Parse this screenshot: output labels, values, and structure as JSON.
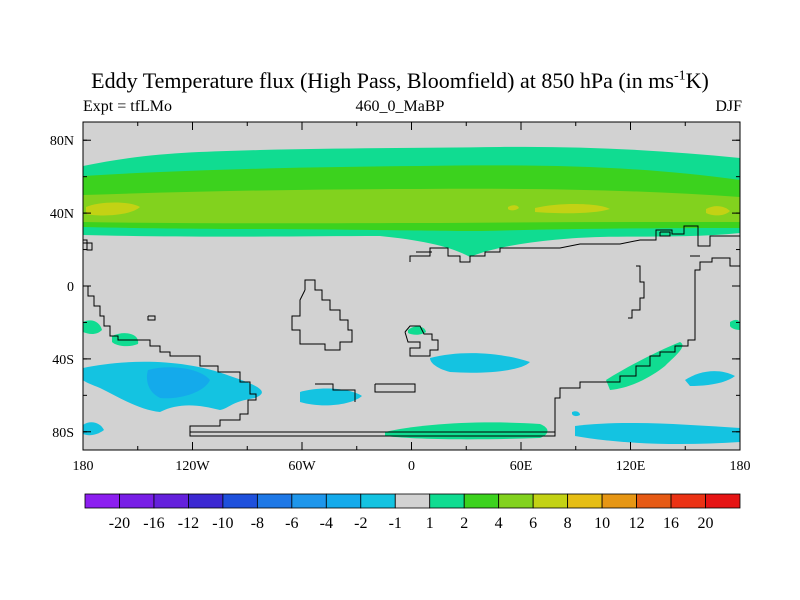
{
  "chart_data": {
    "type": "heatmap",
    "title_main": "Eddy Temperature flux (High Pass, Bloomfield) at 850 hPa (in ms",
    "title_sup": "-1",
    "title_end": "K)",
    "subtitle_left": "Expt = tfLMo",
    "subtitle_center": "460_0_MaBP",
    "subtitle_right": "DJF",
    "x_ticks": [
      {
        "value": -180,
        "label": "180"
      },
      {
        "value": -120,
        "label": "120W"
      },
      {
        "value": -60,
        "label": "60W"
      },
      {
        "value": 0,
        "label": "0"
      },
      {
        "value": 60,
        "label": "60E"
      },
      {
        "value": 120,
        "label": "120E"
      },
      {
        "value": 180,
        "label": "180"
      }
    ],
    "y_ticks": [
      {
        "value": 80,
        "label": "80N"
      },
      {
        "value": 40,
        "label": "40N"
      },
      {
        "value": 0,
        "label": "0"
      },
      {
        "value": -40,
        "label": "40S"
      },
      {
        "value": -80,
        "label": "80S"
      }
    ],
    "xlim": [
      -180,
      180
    ],
    "ylim": [
      -90,
      90
    ],
    "colorbar": {
      "labels": [
        "-20",
        "-16",
        "-12",
        "-10",
        "-8",
        "-6",
        "-4",
        "-2",
        "-1",
        "1",
        "2",
        "4",
        "6",
        "8",
        "10",
        "12",
        "16",
        "20"
      ],
      "colors": [
        "#8c1ef0",
        "#781ee6",
        "#6420dc",
        "#3c28d2",
        "#1e50dc",
        "#1e78e6",
        "#1e96eb",
        "#14aaeb",
        "#14c3e1",
        "#d2d2d2",
        "#10dc91",
        "#3cd21e",
        "#82d21e",
        "#c3d214",
        "#e6be14",
        "#e69614",
        "#e65a14",
        "#eb3214",
        "#e61414"
      ]
    },
    "contours": [
      {
        "level": "1 to 2",
        "color": "#10dc91",
        "lat_range": [
          27,
          76
        ],
        "lon_range": [
          -180,
          180
        ]
      },
      {
        "level": "2 to 4",
        "color": "#3cd21e",
        "lat_range": [
          30,
          68
        ],
        "lon_range": [
          -180,
          180
        ]
      },
      {
        "level": "4 to 6",
        "color": "#82d21e",
        "lat_range": [
          31,
          52
        ],
        "lon_range": [
          -180,
          180
        ]
      },
      {
        "level": "6 to 8",
        "color": "#c3d214",
        "lat_range": [
          38,
          46
        ],
        "lon_range": [
          -178,
          -147
        ]
      },
      {
        "level": "6 to 8",
        "color": "#c3d214",
        "lat_range": [
          39,
          43
        ],
        "lon_range": [
          65,
          105
        ]
      },
      {
        "level": "-1 to -2",
        "color": "#14c3e1",
        "lat_range": [
          -62,
          -43
        ],
        "lon_range": [
          -180,
          -73
        ]
      },
      {
        "level": "-2 to -4",
        "color": "#14aaeb",
        "lat_range": [
          -58,
          -45
        ],
        "lon_range": [
          -145,
          -112
        ]
      },
      {
        "level": "-1 to -2",
        "color": "#14c3e1",
        "lat_range": [
          -83,
          -75
        ],
        "lon_range": [
          85,
          180
        ]
      },
      {
        "level": "1 to 2",
        "color": "#10dc91",
        "lat_range": [
          -84,
          -76
        ],
        "lon_range": [
          -10,
          78
        ]
      },
      {
        "level": "-1 to -2",
        "color": "#14c3e1",
        "lat_range": [
          -50,
          -37
        ],
        "lon_range": [
          18,
          68
        ]
      },
      {
        "level": "-1 to -2",
        "color": "#14c3e1",
        "lat_range": [
          -62,
          -48
        ],
        "lon_range": [
          -57,
          -28
        ]
      }
    ]
  }
}
